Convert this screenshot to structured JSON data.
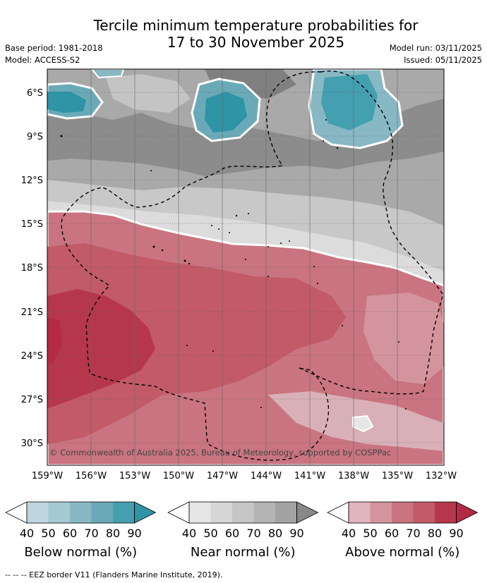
{
  "title": {
    "line1": "Tercile minimum temperature probabilities for",
    "line2": "17 to 30 November 2025"
  },
  "meta": {
    "base_period": "Base period: 1981-2018",
    "model": "Model: ACCESS-S2",
    "model_run": "Model run: 03/11/2025",
    "issued": "Issued: 05/11/2025"
  },
  "map": {
    "lat_labels": [
      "6°S",
      "9°S",
      "12°S",
      "15°S",
      "18°S",
      "21°S",
      "24°S",
      "27°S",
      "30°S"
    ],
    "lon_labels": [
      "159°W",
      "156°W",
      "153°W",
      "150°W",
      "147°W",
      "144°W",
      "141°W",
      "138°W",
      "135°W",
      "132°W"
    ],
    "copyright": "© Commonwealth of Australia 2025, Bureau of Meteorology, supported by COSPPac"
  },
  "colorbars": [
    {
      "name": "below",
      "title": "Below normal (%)",
      "ticks": [
        "40",
        "50",
        "60",
        "70",
        "80",
        "90"
      ],
      "colors": [
        "#ffffff",
        "#c0d6de",
        "#a5c9d2",
        "#88b8c4",
        "#6aaab8",
        "#449fb0",
        "#2e94a6"
      ]
    },
    {
      "name": "near",
      "title": "Near normal (%)",
      "ticks": [
        "40",
        "50",
        "60",
        "70",
        "80",
        "90"
      ],
      "colors": [
        "#ffffff",
        "#e6e6e6",
        "#d6d6d6",
        "#c6c6c6",
        "#b4b4b4",
        "#a2a2a2",
        "#888888"
      ]
    },
    {
      "name": "above",
      "title": "Above normal (%)",
      "ticks": [
        "40",
        "50",
        "60",
        "70",
        "80",
        "90"
      ],
      "colors": [
        "#ffffff",
        "#e0b4bc",
        "#d4949e",
        "#c97480",
        "#c25a68",
        "#b6374c",
        "#b42a44"
      ]
    }
  ],
  "footnote": "--  --  -- EEZ border V11 (Flanders Marine Institute, 2019)."
}
